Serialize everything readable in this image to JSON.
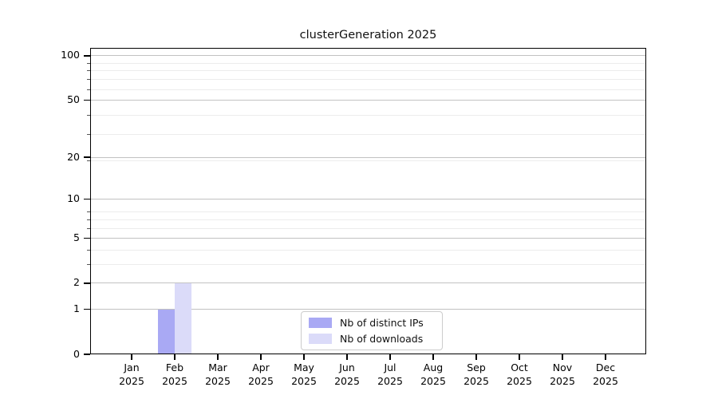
{
  "chart_data": {
    "type": "bar",
    "title": "clusterGeneration 2025",
    "xlabel": "",
    "ylabel": "",
    "x_months": [
      "Jan",
      "Feb",
      "Mar",
      "Apr",
      "May",
      "Jun",
      "Jul",
      "Aug",
      "Sep",
      "Oct",
      "Nov",
      "Dec"
    ],
    "x_year": "2025",
    "categories": [
      "Jan 2025",
      "Feb 2025",
      "Mar 2025",
      "Apr 2025",
      "May 2025",
      "Jun 2025",
      "Jul 2025",
      "Aug 2025",
      "Sep 2025",
      "Oct 2025",
      "Nov 2025",
      "Dec 2025"
    ],
    "series": [
      {
        "name": "Nb of distinct IPs",
        "color": "#a9a9f4",
        "values": [
          0,
          1,
          0,
          0,
          0,
          0,
          0,
          0,
          0,
          0,
          0,
          0
        ]
      },
      {
        "name": "Nb of downloads",
        "color": "#dbdbf9",
        "values": [
          0,
          2,
          0,
          0,
          0,
          0,
          0,
          0,
          0,
          0,
          0,
          0
        ]
      }
    ],
    "yscale": "log1p",
    "ylim": [
      0,
      113
    ],
    "y_major_ticks": [
      0,
      1,
      2,
      5,
      10,
      20,
      50,
      100
    ],
    "y_minor_ticks": [
      3,
      4,
      6,
      7,
      8,
      19,
      29,
      39,
      59,
      69,
      79,
      89
    ],
    "grid": "horizontal only",
    "legend_position": "lower center"
  },
  "colors": {
    "background": "#ffffff",
    "spine": "#000000",
    "grid_major": "#c2c2c2",
    "grid_minor": "#ececec",
    "text": "#000000",
    "bar_distinct_ips": "#a9a9f4",
    "bar_downloads": "#dbdbf9"
  }
}
